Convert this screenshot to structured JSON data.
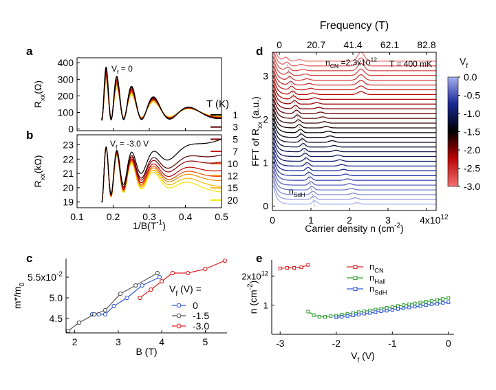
{
  "panels": {
    "a": "a",
    "b": "b",
    "c": "c",
    "d": "d",
    "e": "e"
  },
  "chart_data": [
    {
      "id": "a",
      "type": "line",
      "ylabel": "R",
      "ylabel_sub": "xx",
      "ylabel_unit": "(Ω)",
      "annotation": "V",
      "annotation_sub": "f",
      "annotation_rest": " = 0",
      "xlim": [
        0.1,
        0.5
      ],
      "ylim": [
        -10,
        430
      ],
      "yticks": [
        0,
        100,
        200,
        300,
        400
      ],
      "legend_title": "T (K)",
      "series": [
        {
          "name": "1",
          "color": "#000000",
          "amp": 400,
          "base": 55
        },
        {
          "name": "3",
          "color": "#5a0000",
          "amp": 385,
          "base": 57
        },
        {
          "name": "5",
          "color": "#8b0000",
          "amp": 370,
          "base": 59
        },
        {
          "name": "7",
          "color": "#c00000",
          "amp": 355,
          "base": 61
        },
        {
          "name": "10",
          "color": "#e34a00",
          "amp": 340,
          "base": 63
        },
        {
          "name": "12",
          "color": "#f28a00",
          "amp": 330,
          "base": 65
        },
        {
          "name": "15",
          "color": "#f7b500",
          "amp": 320,
          "base": 67
        },
        {
          "name": "20",
          "color": "#f2e600",
          "amp": 300,
          "base": 69
        }
      ]
    },
    {
      "id": "b",
      "type": "line",
      "ylabel": "R",
      "ylabel_sub": "xx",
      "ylabel_unit": "(kΩ)",
      "annotation": "V",
      "annotation_sub": "f",
      "annotation_rest": " = -3.0 V",
      "xlabel": "1/B(T",
      "xlabel_sup": "-1",
      "xlabel_end": ")",
      "xlim": [
        0.1,
        0.5
      ],
      "ylim": [
        18.6,
        23.7
      ],
      "xticks": [
        0.1,
        0.2,
        0.3,
        0.4,
        0.5
      ],
      "yticks": [
        19,
        20,
        21,
        22,
        23
      ],
      "series": [
        {
          "name": "1",
          "color": "#000000",
          "end": 23.5
        },
        {
          "name": "3",
          "color": "#5a0000",
          "end": 22.4
        },
        {
          "name": "5",
          "color": "#8b0000",
          "end": 21.9
        },
        {
          "name": "7",
          "color": "#c00000",
          "end": 21.3
        },
        {
          "name": "10",
          "color": "#e34a00",
          "end": 20.9
        },
        {
          "name": "12",
          "color": "#f28a00",
          "end": 20.6
        },
        {
          "name": "15",
          "color": "#f7b500",
          "end": 20.2
        },
        {
          "name": "20",
          "color": "#f2e600",
          "end": 19.8
        }
      ]
    },
    {
      "id": "c",
      "type": "scatter",
      "ylabel": "m*/m",
      "ylabel_sub": "0",
      "xlabel": "B (T)",
      "xlim": [
        1.8,
        5.5
      ],
      "ylim": [
        4.15,
        5.95
      ],
      "xticks": [
        2,
        3,
        4,
        5
      ],
      "yticks": [
        4.5,
        5.0,
        5.5
      ],
      "ytick_labels": [
        "4.5",
        "5.0",
        "5.5x10"
      ],
      "ytick_sup": "-2",
      "legend_title": "V",
      "legend_title_sub": "f",
      "legend_title_rest": " (V) =",
      "series": [
        {
          "name": "0",
          "color": "#2f5bd8",
          "x": [
            2.4,
            2.55,
            2.7,
            2.9,
            3.2,
            3.55,
            3.95
          ],
          "y": [
            4.6,
            4.6,
            4.6,
            4.8,
            5.0,
            5.3,
            5.5
          ]
        },
        {
          "name": "-1.5",
          "color": "#555555",
          "x": [
            1.85,
            2.1,
            2.45,
            2.7,
            3.05,
            3.4,
            3.9
          ],
          "y": [
            4.2,
            4.4,
            4.6,
            4.7,
            5.1,
            5.3,
            5.6
          ]
        },
        {
          "name": "-3.0",
          "color": "#e02020",
          "x": [
            3.5,
            3.75,
            4.0,
            4.25,
            4.6,
            5.0,
            5.45
          ],
          "y": [
            5.0,
            5.2,
            5.4,
            5.6,
            5.6,
            5.7,
            5.9
          ]
        }
      ]
    },
    {
      "id": "d",
      "type": "line",
      "top_xlabel": "Frequency (T)",
      "top_xticks": [
        "0",
        "20.7",
        "41.4",
        "62.1",
        "82.8"
      ],
      "ylabel": "FFT of R",
      "ylabel_sub": "xx",
      "ylabel_unit": " (a.u.)",
      "xlabel": "Carrier density n (cm",
      "xlabel_sup": "-2",
      "xlabel_end": ")",
      "xlim": [
        0,
        4.25
      ],
      "ylim": [
        -0.1,
        3.55
      ],
      "xticks": [
        0,
        1,
        2,
        3,
        4
      ],
      "xtick_labels": [
        "0",
        "1",
        "2",
        "3",
        "4x10"
      ],
      "xtick_sup": "12",
      "yticks": [
        0,
        1,
        2,
        3
      ],
      "annotation_ncn": "n",
      "annotation_ncn_sub": "CN",
      "annotation_ncn_rest": " =2.3x10",
      "annotation_ncn_sup": "12",
      "annotation_temp": "T = 400 mK",
      "annotation_nsdh": "n",
      "annotation_nsdh_sub": "SdH",
      "num_traces": 31,
      "colorbar_title": "V",
      "colorbar_title_sub": "f",
      "colorbar_ticks": [
        "0.0",
        "-0.5",
        "-1.0",
        "-1.5",
        "-2.0",
        "-2.5",
        "-3.0"
      ],
      "colorbar_values": [
        0.0,
        -0.5,
        -1.0,
        -1.5,
        -2.0,
        -2.5,
        -3.0
      ]
    },
    {
      "id": "e",
      "type": "scatter",
      "ylabel": "n (cm",
      "ylabel_sup": "-2",
      "ylabel_end": ")",
      "xlabel": "V",
      "xlabel_sub": "f",
      "xlabel_rest": " (V)",
      "xlim": [
        -3.15,
        0.1
      ],
      "ylim": [
        0.0,
        2.55
      ],
      "xticks": [
        -3,
        -2,
        -1,
        0
      ],
      "yticks": [
        1,
        2
      ],
      "ytick_labels": [
        "1",
        "2x10"
      ],
      "ytick_sup": "12",
      "series": [
        {
          "name": "n",
          "sub": "CN",
          "color": "#e02020",
          "x": [
            -3.0,
            -2.875,
            -2.75,
            -2.625,
            -2.5
          ],
          "y": [
            2.26,
            2.28,
            2.28,
            2.3,
            2.38
          ]
        },
        {
          "name": "n",
          "sub": "Hall",
          "color": "#30a030",
          "x": [
            -2.5,
            -2.4,
            -2.3,
            -2.2,
            -2.1,
            -2.0,
            -1.9,
            -1.8,
            -1.7,
            -1.6,
            -1.5,
            -1.4,
            -1.3,
            -1.2,
            -1.1,
            -1.0,
            -0.9,
            -0.8,
            -0.7,
            -0.6,
            -0.5,
            -0.4,
            -0.3,
            -0.2,
            -0.1,
            0.0
          ],
          "y": [
            0.78,
            0.66,
            0.6,
            0.6,
            0.62,
            0.64,
            0.67,
            0.7,
            0.73,
            0.76,
            0.79,
            0.82,
            0.85,
            0.88,
            0.91,
            0.94,
            0.97,
            1.0,
            1.03,
            1.06,
            1.09,
            1.12,
            1.15,
            1.18,
            1.21,
            1.25
          ]
        },
        {
          "name": "n",
          "sub": "SdH",
          "color": "#2f5bd8",
          "x": [
            -2.0,
            -1.9,
            -1.8,
            -1.7,
            -1.6,
            -1.5,
            -1.4,
            -1.3,
            -1.2,
            -1.1,
            -1.0,
            -0.9,
            -0.8,
            -0.7,
            -0.6,
            -0.5,
            -0.4,
            -0.3,
            -0.2,
            -0.1,
            0.0
          ],
          "y": [
            0.58,
            0.6,
            0.63,
            0.65,
            0.68,
            0.71,
            0.73,
            0.76,
            0.79,
            0.81,
            0.84,
            0.87,
            0.89,
            0.92,
            0.95,
            0.97,
            1.0,
            1.03,
            1.05,
            1.08,
            1.1
          ]
        }
      ]
    }
  ]
}
